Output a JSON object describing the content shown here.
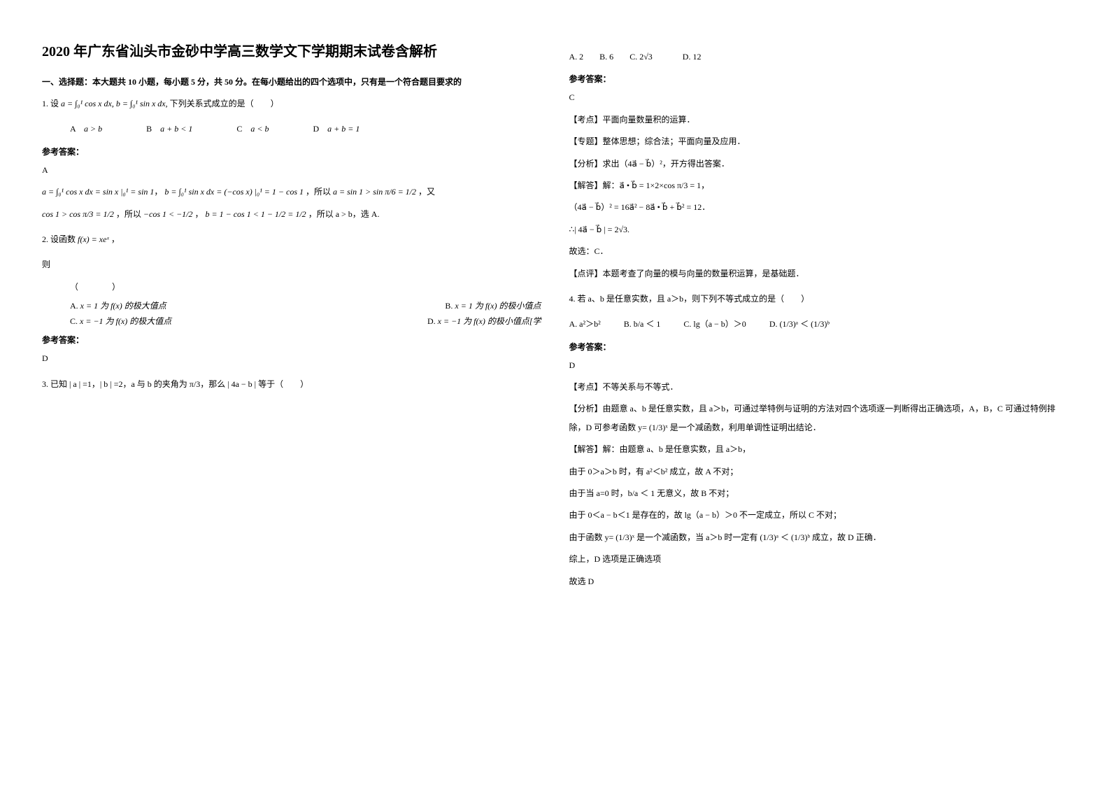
{
  "title": "2020 年广东省汕头市金砂中学高三数学文下学期期末试卷含解析",
  "section1_header": "一、选择题：本大题共 10 小题，每小题 5 分，共 50 分。在每小题给出的四个选项中，只有是一个符合题目要求的",
  "q1": {
    "prefix": "1. 设",
    "formula": "a = ∫₀¹ cos x dx, b = ∫₀¹ sin x dx,",
    "suffix": "下列关系式成立的是（　　）",
    "optA": "a > b",
    "optB": "a + b < 1",
    "optC": "a < b",
    "optD": "a + b = 1",
    "answer_label": "参考答案：",
    "answer": "A",
    "explanation1": "a = ∫₀¹ cos x dx = sin x |₀¹ = sin 1",
    "explanation2": "b = ∫₀¹ sin x dx = (−cos x) |₀¹ = 1 − cos 1",
    "explanation3": "，所以",
    "explanation4": "a = sin 1 > sin π/6 = 1/2",
    "explanation5": "，又",
    "explanation6": "cos 1 > cos π/3 = 1/2",
    "explanation7": "，所以",
    "explanation8": "−cos 1 < −1/2",
    "explanation9": "，",
    "explanation10": "b = 1 − cos 1 < 1 − 1/2 = 1/2",
    "explanation11": "，所以 a > b，选 A."
  },
  "q2": {
    "prefix": "2. 设函数",
    "formula": "f(x) = xeˣ",
    "suffix": "，",
    "line2": "则",
    "line3": "（　　　　）",
    "optA_prefix": "A.",
    "optA": "x = 1 为 f(x) 的极大值点",
    "optB_prefix": "B.",
    "optB": "x = 1 为 f(x) 的极小值点",
    "optC_prefix": "C.",
    "optC": "x = −1 为 f(x) 的极大值点",
    "optD_prefix": "D.",
    "optD": "x = −1 为 f(x) 的极小值点[学",
    "answer_label": "参考答案：",
    "answer": "D"
  },
  "q3": {
    "prefix": "3. 已知 | a | =1，| b | =2，a 与 b 的夹角为 π/3，那么 | 4a − b | 等于（　　）",
    "optA": "A. 2",
    "optB": "B. 6",
    "optC": "C. 2√3",
    "optD": "D. 12",
    "answer_label": "参考答案：",
    "answer": "C",
    "point_label": "【考点】",
    "point": "平面向量数量积的运算．",
    "topic_label": "【专题】",
    "topic": "整体思想；综合法；平面向量及应用．",
    "analysis_label": "【分析】",
    "analysis": "求出（4a⃗ − b⃗）²，开方得出答案．",
    "solve_label": "【解答】",
    "solve1": "解：a⃗ • b⃗ = 1×2×cos π/3 = 1，",
    "solve2": "（4a⃗ − b⃗）² = 16a⃗² − 8a⃗ • b⃗ + b⃗² = 12．",
    "solve3": "∴| 4a⃗ − b⃗ | = 2√3.",
    "solve4": "故选：C．",
    "comment_label": "【点评】",
    "comment": "本题考查了向量的模与向量的数量积运算，是基础题．"
  },
  "q4": {
    "prefix": "4. 若 a、b 是任意实数，且 a＞b，则下列不等式成立的是（　　）",
    "optA": "A. a²＞b²",
    "optB": "B. b/a ＜ 1",
    "optC": "C. lg（a − b）＞0",
    "optD": "D. (1/3)ᵃ ＜ (1/3)ᵇ",
    "answer_label": "参考答案：",
    "answer": "D",
    "point_label": "【考点】",
    "point": "不等关系与不等式．",
    "analysis_label": "【分析】",
    "analysis": "由题意 a、b 是任意实数，且 a＞b，可通过举特例与证明的方法对四个选项逐一判断得出正确选项，A，B，C 可通过特例排除，D 可参考函数 y= (1/3)ˣ 是一个减函数，利用单调性证明出结论．",
    "solve_label": "【解答】",
    "solve1": "解：由题意 a、b 是任意实数，且 a＞b，",
    "solve2": "由于 0＞a＞b 时，有 a²＜b² 成立，故 A 不对；",
    "solve3": "由于当 a=0 时，b/a ＜ 1 无意义，故 B 不对；",
    "solve4": "由于 0＜a − b＜1 是存在的，故 lg（a − b）＞0 不一定成立，所以 C 不对；",
    "solve5": "由于函数 y= (1/3)ˣ 是一个减函数，当 a＞b 时一定有 (1/3)ᵃ ＜ (1/3)ᵇ 成立，故 D 正确．",
    "solve6": "综上，D 选项是正确选项",
    "solve7": "故选 D"
  }
}
